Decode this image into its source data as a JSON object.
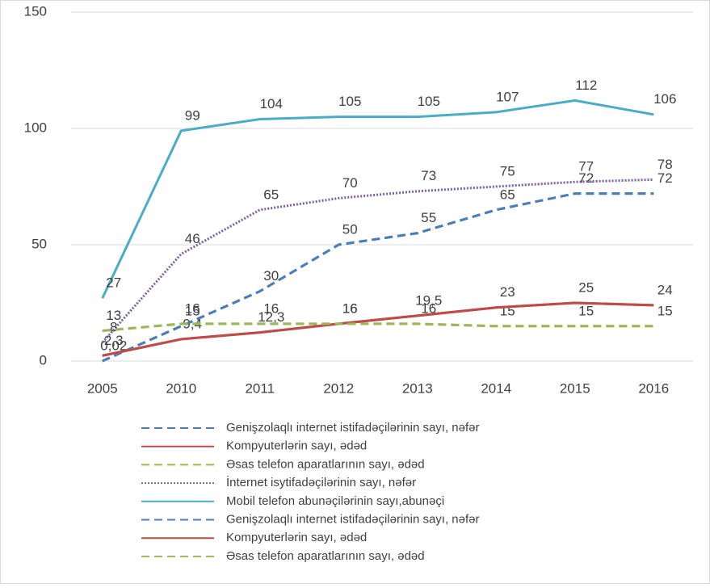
{
  "chart_data": {
    "type": "line",
    "categories": [
      "2005",
      "2010",
      "2011",
      "2012",
      "2013",
      "2014",
      "2015",
      "2016"
    ],
    "ylim": [
      0,
      150
    ],
    "yticks": [
      0,
      50,
      100,
      150
    ],
    "grid": true,
    "series": [
      {
        "name": "Genişzolaqlı internet istifadəçilərinin sayı, nəfər",
        "color": "#4a7ebb",
        "dash": "dashed",
        "values": [
          0.02,
          15,
          30,
          50,
          55,
          65,
          72,
          72
        ],
        "value_labels": [
          "0,02",
          "15",
          "30",
          "50",
          "55",
          "65",
          "72",
          "72"
        ]
      },
      {
        "name": "Kompyuterlərin sayı, ədəd",
        "color": "#be4b48",
        "dash": "solid",
        "values": [
          2.3,
          9.4,
          12.3,
          16,
          19.5,
          23,
          25,
          24
        ],
        "value_labels": [
          "2,3",
          "9,4",
          "12,3",
          "16",
          "19,5",
          "23",
          "25",
          "24"
        ]
      },
      {
        "name": "Əsas telefon aparatlarının sayı, ədəd",
        "color": "#98b954",
        "dash": "dashed",
        "values": [
          13,
          16,
          16,
          16,
          16,
          15,
          15,
          15
        ]
      },
      {
        "name": "İnternet isytifadəçilərinin sayı, nəfər",
        "color": "#7d60a0",
        "dash": "dotted",
        "values": [
          8,
          46,
          65,
          70,
          73,
          75,
          77,
          78
        ]
      },
      {
        "name": "Mobil telefon abunəçilərinin sayı,abunəçi",
        "color": "#4bacc6",
        "dash": "solid",
        "values": [
          27,
          99,
          104,
          105,
          105,
          107,
          112,
          106
        ]
      },
      {
        "name": "Genişzolaqlı internet istifadəçilərinin sayı, nəfər",
        "color": "#4a7ebb",
        "dash": "dashed",
        "values": [
          0.02,
          15,
          30,
          50,
          55,
          65,
          72,
          72
        ]
      },
      {
        "name": "Kompyuterlərin sayı, ədəd",
        "color": "#be4b48",
        "dash": "solid",
        "values": [
          2.3,
          9.4,
          12.3,
          16,
          19.5,
          23,
          25,
          24
        ]
      },
      {
        "name": "Əsas telefon aparatlarının sayı, ədəd",
        "color": "#98b954",
        "dash": "dashed",
        "values": [
          13,
          16,
          16,
          16,
          16,
          15,
          15,
          15
        ]
      }
    ]
  }
}
